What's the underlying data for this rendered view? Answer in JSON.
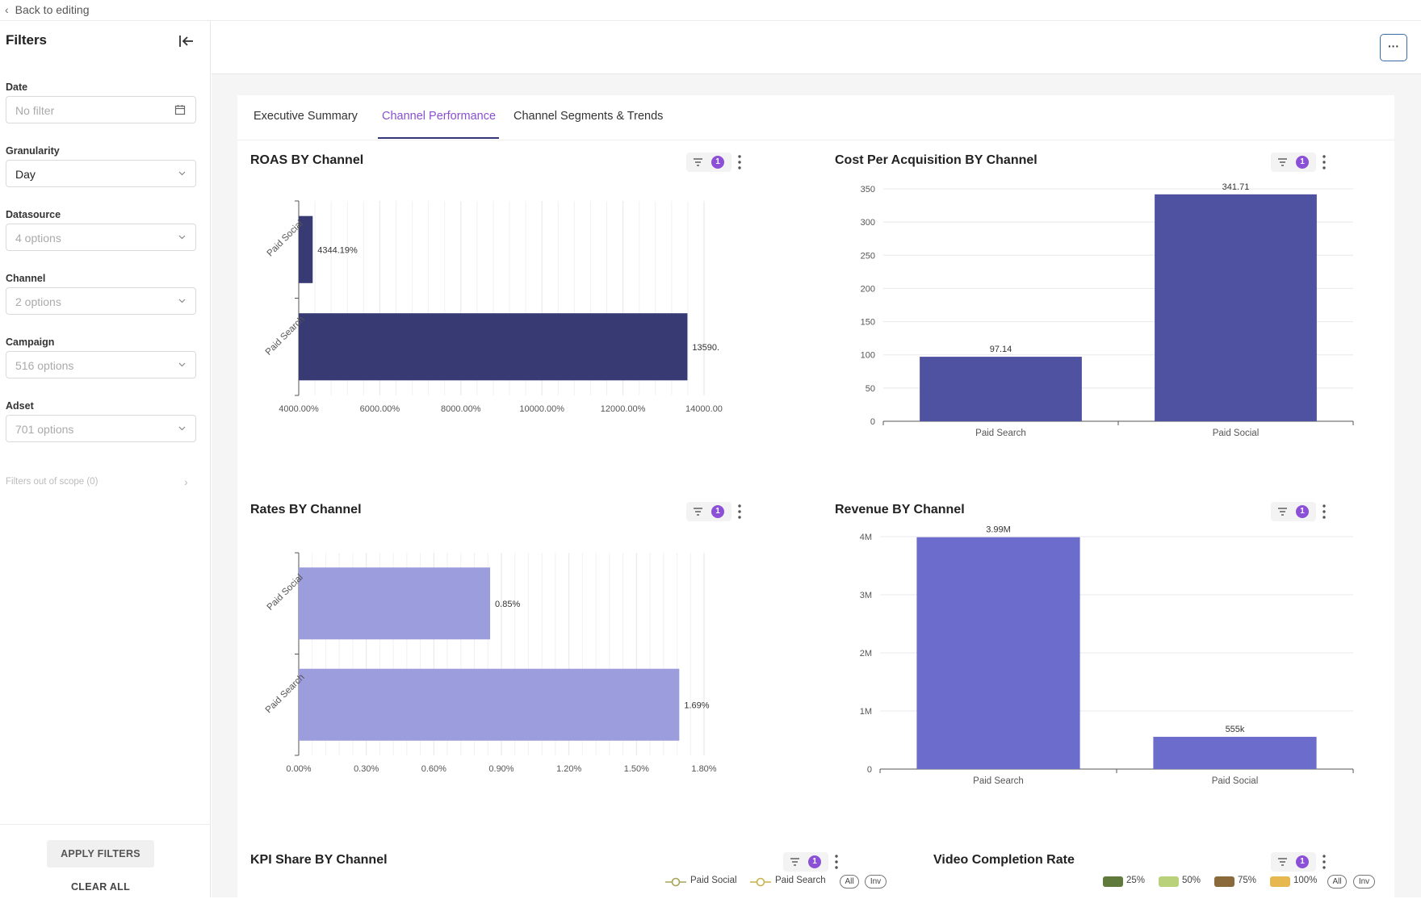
{
  "topbar": {
    "back_label": "Back to editing"
  },
  "sidebar": {
    "title": "Filters",
    "filters": {
      "date": {
        "label": "Date",
        "value": "No filter"
      },
      "granularity": {
        "label": "Granularity",
        "value": "Day"
      },
      "datasource": {
        "label": "Datasource",
        "value": "4 options"
      },
      "channel": {
        "label": "Channel",
        "value": "2 options"
      },
      "campaign": {
        "label": "Campaign",
        "value": "516 options"
      },
      "adset": {
        "label": "Adset",
        "value": "701 options"
      }
    },
    "scope_label": "Filters out of scope (0)",
    "apply_label": "APPLY FILTERS",
    "clear_label": "CLEAR ALL"
  },
  "header": {
    "more_label": "···"
  },
  "tabs": [
    {
      "label": "Executive Summary",
      "active": false
    },
    {
      "label": "Channel Performance",
      "active": true
    },
    {
      "label": "Channel Segments & Trends",
      "active": false
    }
  ],
  "colors": {
    "accent": "#8b4fd8",
    "roas_bar": "#383a74",
    "cpa_bar": "#4e52a0",
    "rates_bar": "#9c9ddc",
    "revenue_bar": "#6b6ccb"
  },
  "chart_data": [
    {
      "id": "roas",
      "type": "bar",
      "orientation": "horizontal",
      "title": "ROAS BY Channel",
      "filter_count": "1",
      "categories": [
        "Paid Social",
        "Paid Search"
      ],
      "values": [
        4344.19,
        13590
      ],
      "data_labels": [
        "4344.19%",
        "13590."
      ],
      "xlim": [
        4000,
        14000
      ],
      "xticks": [
        "4000.00%",
        "6000.00%",
        "8000.00%",
        "10000.00%",
        "12000.00%",
        "14000.00"
      ],
      "grid": true
    },
    {
      "id": "cpa",
      "type": "bar",
      "orientation": "vertical",
      "title": "Cost Per Acquisition BY Channel",
      "filter_count": "1",
      "categories": [
        "Paid Search",
        "Paid Social"
      ],
      "values": [
        97.14,
        341.71
      ],
      "data_labels": [
        "97.14",
        "341.71"
      ],
      "ylim": [
        0,
        350
      ],
      "yticks": [
        "0",
        "50",
        "100",
        "150",
        "200",
        "250",
        "300",
        "350"
      ],
      "grid": true
    },
    {
      "id": "rates",
      "type": "bar",
      "orientation": "horizontal",
      "title": "Rates BY Channel",
      "filter_count": "1",
      "categories": [
        "Paid Social",
        "Paid Search"
      ],
      "values": [
        0.85,
        1.69
      ],
      "data_labels": [
        "0.85%",
        "1.69%"
      ],
      "xlim": [
        0,
        1.8
      ],
      "xticks": [
        "0.00%",
        "0.30%",
        "0.60%",
        "0.90%",
        "1.20%",
        "1.50%",
        "1.80%"
      ],
      "grid": true
    },
    {
      "id": "revenue",
      "type": "bar",
      "orientation": "vertical",
      "title": "Revenue BY Channel",
      "filter_count": "1",
      "categories": [
        "Paid Search",
        "Paid Social"
      ],
      "values": [
        3990000,
        555000
      ],
      "data_labels": [
        "3.99M",
        "555k"
      ],
      "ylim": [
        0,
        4000000
      ],
      "yticks": [
        "0",
        "1M",
        "2M",
        "3M",
        "4M"
      ],
      "grid": true
    }
  ],
  "kpi_card": {
    "title": "KPI Share BY Channel",
    "filter_count": "1",
    "legend": [
      {
        "label": "Paid Social",
        "color": "#a8a35a"
      },
      {
        "label": "Paid Search",
        "color": "#c9b24a"
      }
    ],
    "all_label": "All",
    "inv_label": "Inv"
  },
  "video_card": {
    "title": "Video Completion Rate",
    "filter_count": "1",
    "legend": [
      {
        "label": "25%",
        "color": "#5f7a3a"
      },
      {
        "label": "50%",
        "color": "#b9d17a"
      },
      {
        "label": "75%",
        "color": "#8a6a3a"
      },
      {
        "label": "100%",
        "color": "#e6b84f"
      }
    ],
    "all_label": "All",
    "inv_label": "Inv"
  }
}
